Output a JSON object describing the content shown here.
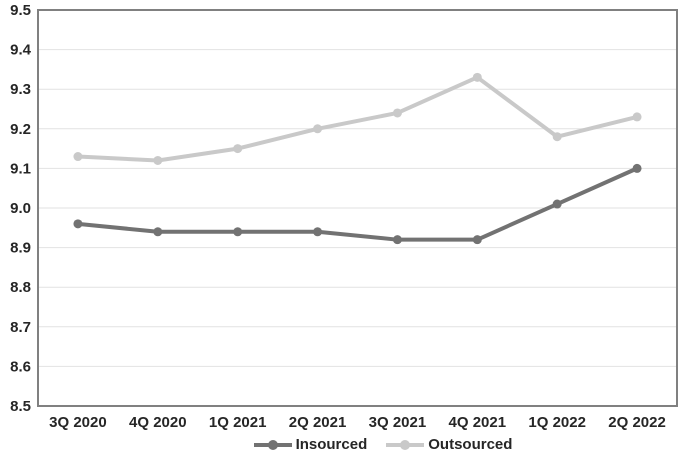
{
  "chart_data": {
    "type": "line",
    "categories": [
      "3Q 2020",
      "4Q 2020",
      "1Q 2021",
      "2Q 2021",
      "3Q 2021",
      "4Q 2021",
      "1Q 2022",
      "2Q 2022"
    ],
    "series": [
      {
        "name": "Insourced",
        "color": "#727272",
        "values": [
          8.96,
          8.94,
          8.94,
          8.94,
          8.92,
          8.92,
          9.01,
          9.1
        ]
      },
      {
        "name": "Outsourced",
        "color": "#c9c9c9",
        "values": [
          9.13,
          9.12,
          9.15,
          9.2,
          9.24,
          9.33,
          9.18,
          9.23
        ]
      }
    ],
    "ylim": [
      8.5,
      9.5
    ],
    "ytick_step": 0.1,
    "yticks": [
      "9.5",
      "9.4",
      "9.3",
      "9.2",
      "9.1",
      "9.0",
      "8.9",
      "8.8",
      "8.7",
      "8.6",
      "8.5"
    ],
    "grid": true,
    "legend_position": "bottom"
  },
  "colors": {
    "background": "#ffffff",
    "gridline": "#e2e2e2",
    "plot_border": "#808080",
    "axis_text": "#262626"
  }
}
